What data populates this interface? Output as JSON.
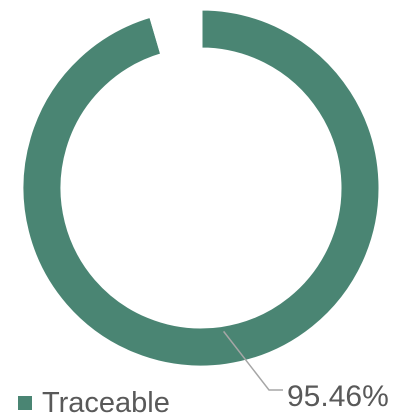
{
  "colors": {
    "accent": "#4a8573",
    "text": "#595959",
    "leader": "#a6a6a6"
  },
  "chart_data": {
    "type": "pie",
    "variant": "donut",
    "title": "",
    "slices": [
      {
        "label": "Traceable",
        "value": 95.46,
        "display": "95.46%",
        "color": "#4a8573"
      },
      {
        "label": "",
        "value": 4.54,
        "display": "",
        "color": "#ffffff"
      }
    ],
    "legend": {
      "position": "bottom-left",
      "entries": [
        "Traceable"
      ]
    }
  }
}
